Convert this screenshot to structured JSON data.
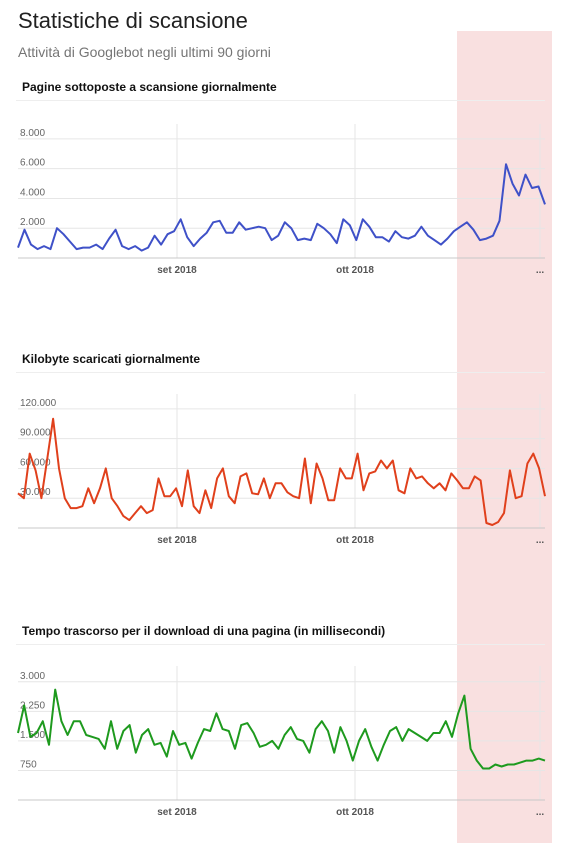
{
  "header": {
    "title": "Statistiche di scansione",
    "subtitle": "Attività di Googlebot negli ultimi 90 giorni"
  },
  "colors": {
    "pages": "#3f51c8",
    "kilobytes": "#e0401c",
    "time": "#1e9a1e",
    "highlight": "#f7d9da"
  },
  "chart_data": [
    {
      "type": "line",
      "title": "Pagine sottoposte a scansione giornalmente",
      "x_tick_labels": [
        "set 2018",
        "ott 2018",
        "..."
      ],
      "y_tick_labels": [
        "8.000",
        "6.000",
        "4.000",
        "2.000"
      ],
      "y_ticks": [
        8000,
        6000,
        4000,
        2000
      ],
      "ylim": [
        0,
        9000
      ],
      "grid": true,
      "series": [
        {
          "values": [
            700,
            1900,
            900,
            600,
            800,
            600,
            2000,
            1600,
            1100,
            600,
            700,
            700,
            900,
            600,
            1300,
            1900,
            800,
            600,
            800,
            500,
            700,
            1500,
            900,
            1600,
            1800,
            2600,
            1400,
            800,
            1300,
            1700,
            2400,
            2500,
            1700,
            1700,
            2400,
            1900,
            2000,
            2100,
            2000,
            1200,
            1500,
            2400,
            2000,
            1200,
            1300,
            1200,
            2300,
            2000,
            1600,
            1000,
            2600,
            2200,
            1200,
            2600,
            2100,
            1400,
            1400,
            1100,
            1800,
            1400,
            1300,
            1500,
            2100,
            1500,
            1200,
            900,
            1300,
            1800,
            2100,
            2400,
            1900,
            1200,
            1300,
            1500,
            2500,
            6300,
            5000,
            4200,
            5600,
            4700,
            4800,
            3600
          ]
        }
      ]
    },
    {
      "type": "line",
      "title": "Kilobyte scaricati giornalmente",
      "x_tick_labels": [
        "set 2018",
        "ott 2018",
        "..."
      ],
      "y_tick_labels": [
        "120.000",
        "90.000",
        "60.000",
        "30.000"
      ],
      "y_ticks": [
        120000,
        90000,
        60000,
        30000
      ],
      "ylim": [
        0,
        135000
      ],
      "grid": true,
      "series": [
        {
          "values": [
            35000,
            30000,
            75000,
            58000,
            30000,
            70000,
            110000,
            60000,
            30000,
            20000,
            20000,
            22000,
            40000,
            25000,
            40000,
            60000,
            30000,
            22000,
            12000,
            8000,
            15000,
            22000,
            15000,
            18000,
            50000,
            32000,
            32000,
            40000,
            22000,
            58000,
            22000,
            15000,
            38000,
            20000,
            50000,
            60000,
            32000,
            25000,
            52000,
            55000,
            35000,
            34000,
            50000,
            30000,
            45000,
            45000,
            36000,
            32000,
            30000,
            70000,
            25000,
            65000,
            50000,
            28000,
            28000,
            60000,
            50000,
            50000,
            75000,
            38000,
            55000,
            57000,
            68000,
            60000,
            68000,
            38000,
            35000,
            60000,
            50000,
            52000,
            45000,
            40000,
            45000,
            38000,
            55000,
            48000,
            40000,
            40000,
            52000,
            48000,
            5000,
            3000,
            6000,
            15000,
            58000,
            30000,
            32000,
            65000,
            75000,
            60000,
            32000
          ]
        }
      ]
    },
    {
      "type": "line",
      "title": "Tempo trascorso per il download di una pagina (in millisecondi)",
      "x_tick_labels": [
        "set 2018",
        "ott 2018",
        "..."
      ],
      "y_tick_labels": [
        "3.000",
        "2.250",
        "1.500",
        "750"
      ],
      "y_ticks": [
        3000,
        2250,
        1500,
        750
      ],
      "ylim": [
        0,
        3400
      ],
      "grid": true,
      "series": [
        {
          "values": [
            1700,
            2400,
            1600,
            1700,
            2000,
            1400,
            2800,
            2000,
            1650,
            2000,
            2000,
            1650,
            1600,
            1550,
            1300,
            2000,
            1300,
            1750,
            1900,
            1200,
            1650,
            1800,
            1400,
            1450,
            1100,
            1750,
            1400,
            1450,
            1050,
            1450,
            1800,
            1750,
            2200,
            1800,
            1750,
            1300,
            1900,
            1950,
            1700,
            1350,
            1400,
            1500,
            1300,
            1650,
            1850,
            1550,
            1500,
            1200,
            1800,
            2000,
            1750,
            1200,
            1850,
            1500,
            1000,
            1500,
            1800,
            1350,
            1000,
            1400,
            1750,
            1850,
            1500,
            1800,
            1700,
            1600,
            1500,
            1700,
            1700,
            2000,
            1600,
            2200,
            2650,
            1300,
            1000,
            800,
            800,
            900,
            850,
            900,
            900,
            950,
            1000,
            1000,
            1050,
            1000
          ]
        }
      ]
    }
  ]
}
